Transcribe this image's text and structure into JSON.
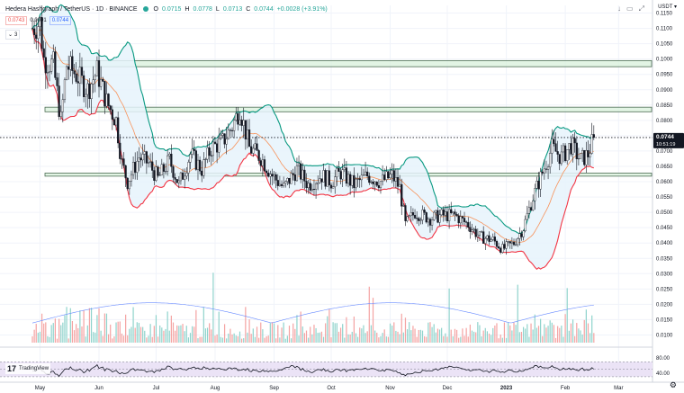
{
  "header": {
    "symbol": "Hedera Hashgraph / TetherUS · 1D · BINANCE",
    "o_label": "O",
    "o_value": "0.0715",
    "h_label": "H",
    "h_value": "0.0778",
    "l_label": "L",
    "l_value": "0.0713",
    "c_label": "C",
    "c_value": "0.0744",
    "change": "+0.0028 (+3.91%)",
    "sell_price": "0.0743",
    "spread": "0.0001",
    "buy_price": "0.0744",
    "indicators_count": "3"
  },
  "toolbar": {
    "currency_label": "USDT"
  },
  "branding": {
    "logo_text": "TradingView"
  },
  "colors": {
    "up": "#26a69a",
    "down": "#ef5350",
    "candle": "#131722",
    "bb_upper": "#089981",
    "bb_lower": "#f23645",
    "bb_basis": "#f7925a",
    "bb_fill": "#e6f3fb",
    "zone_fill": "#d6efd9",
    "zone_border": "#4a6b52",
    "volume_ma": "#6a8cff",
    "rsi_line": "#131722",
    "rsi_band": "#ebe3f6"
  },
  "chart_data": {
    "type": "candlestick",
    "price_axis": {
      "ticks": [
        "0.1150",
        "0.1100",
        "0.1050",
        "0.1000",
        "0.0950",
        "0.0900",
        "0.0850",
        "0.0800",
        "0.0750",
        "0.0700",
        "0.0650",
        "0.0600",
        "0.0550",
        "0.0500",
        "0.0450",
        "0.0400",
        "0.0350",
        "0.0300",
        "0.0250",
        "0.0200",
        "0.0150",
        "0.0100"
      ],
      "range": [
        0.0075,
        0.1175
      ],
      "last_price": "0.0744",
      "countdown": "10:51:19"
    },
    "time_axis": {
      "labels": [
        "May",
        "Jun",
        "Jul",
        "Aug",
        "Sep",
        "Oct",
        "Nov",
        "Dec",
        "2023",
        "Feb",
        "Mar"
      ]
    },
    "zones": [
      {
        "from": 0.0975,
        "to": 0.0995
      },
      {
        "from": 0.0828,
        "to": 0.0843
      },
      {
        "from": 0.0618,
        "to": 0.0628
      }
    ],
    "price_path": [
      [
        "2022-04-27",
        0.11
      ],
      [
        "2022-05-01",
        0.112
      ],
      [
        "2022-05-03",
        0.1
      ],
      [
        "2022-05-08",
        0.098
      ],
      [
        "2022-05-12",
        0.08
      ],
      [
        "2022-05-15",
        0.098
      ],
      [
        "2022-05-20",
        0.095
      ],
      [
        "2022-05-26",
        0.09
      ],
      [
        "2022-05-31",
        0.096
      ],
      [
        "2022-06-05",
        0.086
      ],
      [
        "2022-06-10",
        0.08
      ],
      [
        "2022-06-13",
        0.066
      ],
      [
        "2022-06-16",
        0.06
      ],
      [
        "2022-06-22",
        0.068
      ],
      [
        "2022-06-27",
        0.066
      ],
      [
        "2022-07-02",
        0.061
      ],
      [
        "2022-07-08",
        0.067
      ],
      [
        "2022-07-13",
        0.059
      ],
      [
        "2022-07-19",
        0.069
      ],
      [
        "2022-07-25",
        0.064
      ],
      [
        "2022-07-30",
        0.071
      ],
      [
        "2022-08-05",
        0.073
      ],
      [
        "2022-08-10",
        0.078
      ],
      [
        "2022-08-14",
        0.084
      ],
      [
        "2022-08-19",
        0.071
      ],
      [
        "2022-08-25",
        0.068
      ],
      [
        "2022-08-31",
        0.062
      ],
      [
        "2022-09-06",
        0.058
      ],
      [
        "2022-09-13",
        0.064
      ],
      [
        "2022-09-19",
        0.059
      ],
      [
        "2022-09-26",
        0.062
      ],
      [
        "2022-10-01",
        0.06
      ],
      [
        "2022-10-06",
        0.063
      ],
      [
        "2022-10-13",
        0.059
      ],
      [
        "2022-10-20",
        0.062
      ],
      [
        "2022-10-27",
        0.06
      ],
      [
        "2022-11-02",
        0.062
      ],
      [
        "2022-11-06",
        0.058
      ],
      [
        "2022-11-09",
        0.046
      ],
      [
        "2022-11-14",
        0.05
      ],
      [
        "2022-11-22",
        0.048
      ],
      [
        "2022-11-28",
        0.049
      ],
      [
        "2022-12-05",
        0.049
      ],
      [
        "2022-12-12",
        0.046
      ],
      [
        "2022-12-18",
        0.042
      ],
      [
        "2022-12-25",
        0.041
      ],
      [
        "2022-12-30",
        0.038
      ],
      [
        "2023-01-05",
        0.04
      ],
      [
        "2023-01-10",
        0.045
      ],
      [
        "2023-01-15",
        0.055
      ],
      [
        "2023-01-20",
        0.063
      ],
      [
        "2023-01-25",
        0.071
      ],
      [
        "2023-01-30",
        0.068
      ],
      [
        "2023-02-04",
        0.072
      ],
      [
        "2023-02-09",
        0.067
      ],
      [
        "2023-02-13",
        0.069
      ],
      [
        "2023-02-16",
        0.0744
      ]
    ],
    "volume_ma_range": [
      0.0095,
      0.0205
    ],
    "rsi": {
      "ticks": [
        "80.00",
        "40.00"
      ],
      "range": [
        25,
        95
      ],
      "band": [
        30,
        70
      ]
    }
  }
}
